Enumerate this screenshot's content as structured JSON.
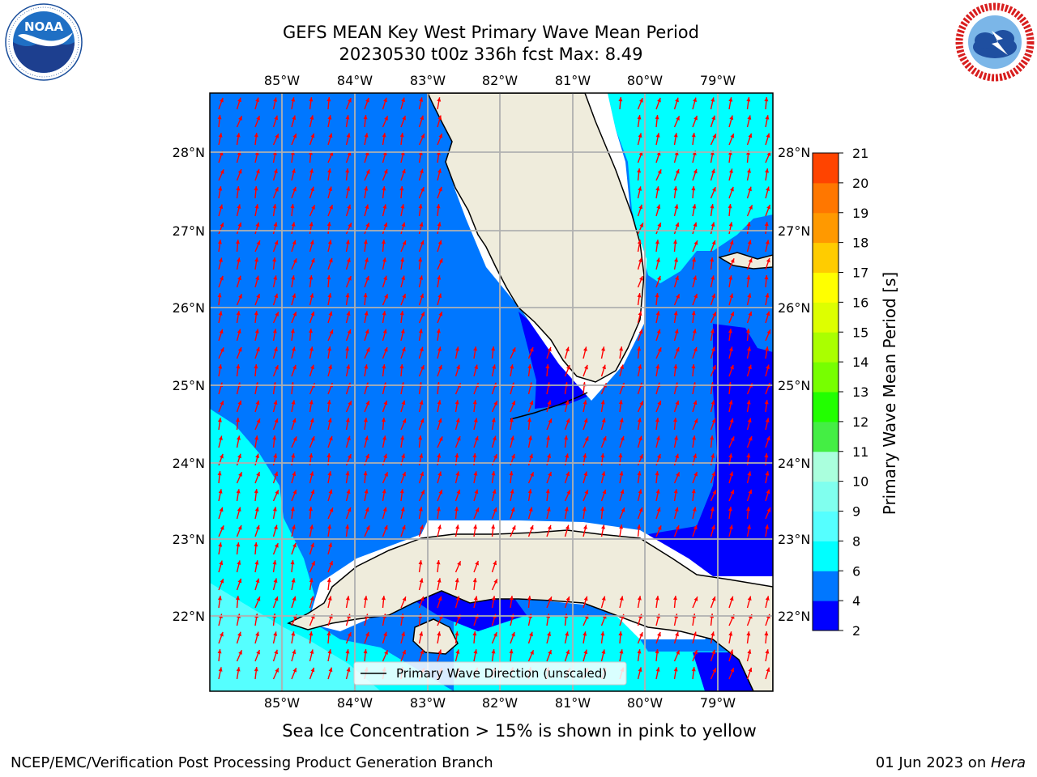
{
  "title": {
    "line1": "GEFS MEAN Key West Primary Wave Mean Period",
    "line2": "20230530 t00z 336h fcst   Max: 8.49"
  },
  "map": {
    "lon_ticks": [
      "85°W",
      "84°W",
      "83°W",
      "82°W",
      "81°W",
      "80°W",
      "79°W"
    ],
    "lat_ticks": [
      "28°N",
      "27°N",
      "26°N",
      "25°N",
      "24°N",
      "23°N",
      "22°N"
    ],
    "legend_label": "Primary Wave Direction (unscaled)",
    "land_color": "#efecdc",
    "arrow_color": "#ff0000"
  },
  "colorbar": {
    "title": "Primary Wave Mean Period [s]",
    "levels": [
      "2",
      "4",
      "6",
      "8",
      "9",
      "10",
      "11",
      "12",
      "13",
      "14",
      "15",
      "16",
      "17",
      "18",
      "19",
      "20",
      "21"
    ],
    "colors": [
      "#0000ff",
      "#0077ff",
      "#00ffff",
      "#55ffff",
      "#80ffee",
      "#aaffdd",
      "#44ee44",
      "#22ff00",
      "#77ff00",
      "#aaff00",
      "#ddff00",
      "#ffff00",
      "#ffcc00",
      "#ff9900",
      "#ff7700",
      "#ff4400",
      "#ff0000"
    ]
  },
  "footer": {
    "note": "Sea Ice Concentration > 15% is shown in pink to yellow",
    "credit_left": "NCEP/EMC/Verification Post Processing Product Generation Branch",
    "credit_date": "01 Jun 2023 on ",
    "credit_host": "Hera"
  },
  "logos": {
    "left": "noaa-logo",
    "right": "nws-logo"
  }
}
